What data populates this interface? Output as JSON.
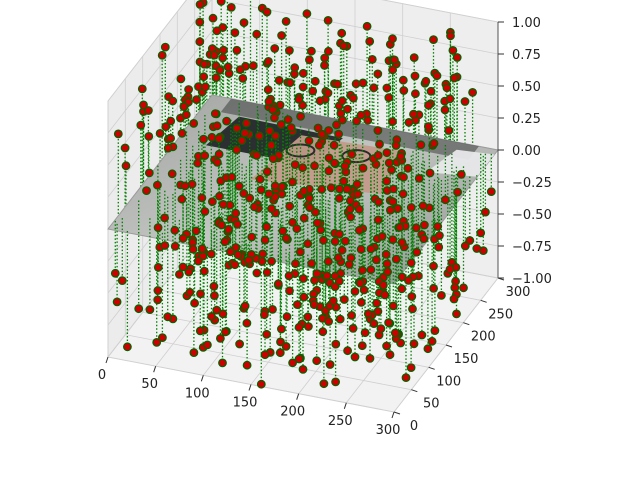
{
  "chart_data": {
    "type": "scatter",
    "projection": "3d",
    "description_visible": "image mapped onto a surface with stem lines and markers",
    "x_ticks": [
      "0",
      "50",
      "100",
      "150",
      "200",
      "250",
      "300"
    ],
    "y_ticks": [
      "0",
      "50",
      "100",
      "150",
      "200",
      "250",
      "300"
    ],
    "z_ticks": [
      "−1.00",
      "−0.75",
      "−0.50",
      "−0.25",
      "0.00",
      "0.25",
      "0.50",
      "0.75",
      "1.00"
    ],
    "xlim": [
      0,
      300
    ],
    "ylim": [
      0,
      300
    ],
    "zlim": [
      -1.0,
      1.0
    ],
    "grid": true,
    "marker_color": "#cc0000",
    "marker_edge_color": "#006400",
    "stem_color": "#008000",
    "surface_color": "#b7b9b6",
    "pane_color": "#f2f2f2"
  }
}
